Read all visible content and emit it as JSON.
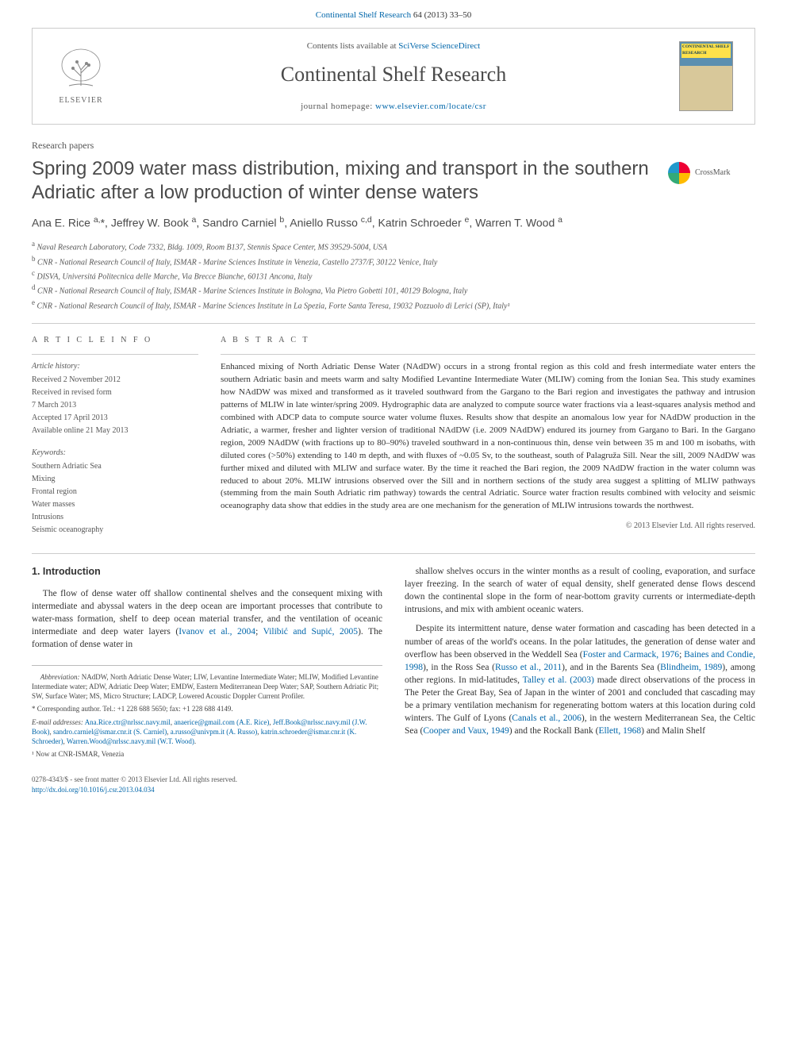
{
  "top_citation": {
    "journal_link": "Continental Shelf Research",
    "citation_text": " 64 (2013) 33–50"
  },
  "header": {
    "contents_prefix": "Contents lists available at ",
    "contents_link": "SciVerse ScienceDirect",
    "journal_name": "Continental Shelf Research",
    "homepage_prefix": "journal homepage: ",
    "homepage_link": "www.elsevier.com/locate/csr",
    "publisher_word": "ELSEVIER",
    "cover_label": "CONTINENTAL SHELF RESEARCH"
  },
  "article": {
    "section_label": "Research papers",
    "title": "Spring 2009 water mass distribution, mixing and transport in the southern Adriatic after a low production of winter dense waters",
    "crossmark": "CrossMark",
    "authors_html": "Ana E. Rice <sup>a,</sup>*, Jeffrey W. Book <sup>a</sup>, Sandro Carniel <sup>b</sup>, Aniello Russo <sup>c,d</sup>, Katrin Schroeder <sup>e</sup>, Warren T. Wood <sup>a</sup>",
    "affiliations": [
      "a Naval Research Laboratory, Code 7332, Bldg. 1009, Room B137, Stennis Space Center, MS 39529-5004, USA",
      "b CNR - National Research Council of Italy, ISMAR - Marine Sciences Institute in Venezia, Castello 2737/F, 30122 Venice, Italy",
      "c DISVA, Universitá Politecnica delle Marche, Via Brecce Bianche, 60131 Ancona, Italy",
      "d CNR - National Research Council of Italy, ISMAR - Marine Sciences Institute in Bologna, Via Pietro Gobetti 101, 40129 Bologna, Italy",
      "e CNR - National Research Council of Italy, ISMAR - Marine Sciences Institute in La Spezia, Forte Santa Teresa, 19032 Pozzuolo di Lerici (SP), Italy¹"
    ]
  },
  "article_info": {
    "heading": "A R T I C L E   I N F O",
    "history_head": "Article history:",
    "history": [
      "Received 2 November 2012",
      "Received in revised form",
      "7 March 2013",
      "Accepted 17 April 2013",
      "Available online 21 May 2013"
    ],
    "keywords_head": "Keywords:",
    "keywords": [
      "Southern Adriatic Sea",
      "Mixing",
      "Frontal region",
      "Water masses",
      "Intrusions",
      "Seismic oceanography"
    ]
  },
  "abstract": {
    "heading": "A B S T R A C T",
    "text": "Enhanced mixing of North Adriatic Dense Water (NAdDW) occurs in a strong frontal region as this cold and fresh intermediate water enters the southern Adriatic basin and meets warm and salty Modified Levantine Intermediate Water (MLIW) coming from the Ionian Sea. This study examines how NAdDW was mixed and transformed as it traveled southward from the Gargano to the Bari region and investigates the pathway and intrusion patterns of MLIW in late winter/spring 2009. Hydrographic data are analyzed to compute source water fractions via a least-squares analysis method and combined with ADCP data to compute source water volume fluxes. Results show that despite an anomalous low year for NAdDW production in the Adriatic, a warmer, fresher and lighter version of traditional NAdDW (i.e. 2009 NAdDW) endured its journey from Gargano to Bari. In the Gargano region, 2009 NAdDW (with fractions up to 80–90%) traveled southward in a non-continuous thin, dense vein between 35 m and 100 m isobaths, with diluted cores (>50%) extending to 140 m depth, and with fluxes of ~0.05 Sv, to the southeast, south of Palagruža Sill. Near the sill, 2009 NAdDW was further mixed and diluted with MLIW and surface water. By the time it reached the Bari region, the 2009 NAdDW fraction in the water column was reduced to about 20%. MLIW intrusions observed over the Sill and in northern sections of the study area suggest a splitting of MLIW pathways (stemming from the main South Adriatic rim pathway) towards the central Adriatic. Source water fraction results combined with velocity and seismic oceanography data show that eddies in the study area are one mechanism for the generation of MLIW intrusions towards the northwest.",
    "copyright": "© 2013 Elsevier Ltd. All rights reserved."
  },
  "body": {
    "intro_head": "1. Introduction",
    "p1": "The flow of dense water off shallow continental shelves and the consequent mixing with intermediate and abyssal waters in the deep ocean are important processes that contribute to water-mass formation, shelf to deep ocean material transfer, and the ventilation of oceanic intermediate and deep water layers (",
    "p1_link1": "Ivanov et al., 2004",
    "p1_mid": "; ",
    "p1_link2": "Vilibić and Supić, 2005",
    "p1_end": "). The formation of dense water in ",
    "p2": "shallow shelves occurs in the winter months as a result of cooling, evaporation, and surface layer freezing. In the search of water of equal density, shelf generated dense flows descend down the continental slope in the form of near-bottom gravity currents or intermediate-depth intrusions, and mix with ambient oceanic waters.",
    "p3_a": "Despite its intermittent nature, dense water formation and cascading has been detected in a number of areas of the world's oceans. In the polar latitudes, the generation of dense water and overflow has been observed in the Weddell Sea (",
    "p3_l1": "Foster and Carmack, 1976",
    "p3_b": "; ",
    "p3_l2": "Baines and Condie, 1998",
    "p3_c": "), in the Ross Sea (",
    "p3_l3": "Russo et al., 2011",
    "p3_d": "), and in the Barents Sea (",
    "p3_l4": "Blindheim, 1989",
    "p3_e": "), among other regions. In mid-latitudes, ",
    "p3_l5": "Talley et al. (2003)",
    "p3_f": " made direct observations of the process in The Peter the Great Bay, Sea of Japan in the winter of 2001 and concluded that cascading may be a primary ventilation mechanism for regenerating bottom waters at this location during cold winters. The Gulf of Lyons (",
    "p3_l6": "Canals et al., 2006",
    "p3_g": "), in the western Mediterranean Sea, the Celtic Sea (",
    "p3_l7": "Cooper and Vaux, 1949",
    "p3_h": ") and the Rockall Bank (",
    "p3_l8": "Ellett, 1968",
    "p3_i": ") and Malin Shelf"
  },
  "footnotes": {
    "abbrev_head": "Abbreviation:",
    "abbrev": " NAdDW, North Adriatic Dense Water; LIW, Levantine Intermediate Water; MLIW, Modified Levantine Intermediate water; ADW, Adriatic Deep Water; EMDW, Eastern Mediterranean Deep Water; SAP, Southern Adriatic Pit; SW, Surface Water; MS, Micro Structure; LADCP, Lowered Acoustic Doppler Current Profiler.",
    "corr": "* Corresponding author. Tel.: +1 228 688 5650; fax: +1 228 688 4149.",
    "emails_head": "E-mail addresses:",
    "emails": [
      {
        "addr": "Ana.Rice.ctr@nrlssc.navy.mil",
        "sep": ", "
      },
      {
        "addr": "anaerice@gmail.com (A.E. Rice)",
        "sep": ", "
      },
      {
        "addr": "Jeff.Book@nrlssc.navy.mil (J.W. Book)",
        "sep": ", "
      },
      {
        "addr": "sandro.carniel@ismar.cnr.it (S. Carniel)",
        "sep": ", "
      },
      {
        "addr": "a.russo@univpm.it (A. Russo)",
        "sep": ", "
      },
      {
        "addr": "katrin.schroeder@ismar.cnr.it (K. Schroeder)",
        "sep": ", "
      },
      {
        "addr": "Warren.Wood@nrlssc.navy.mil (W.T. Wood)",
        "sep": "."
      }
    ],
    "note1": "¹ Now at CNR-ISMAR, Venezia"
  },
  "bottom": {
    "line1": "0278-4343/$ - see front matter © 2013 Elsevier Ltd. All rights reserved.",
    "doi_link": "http://dx.doi.org/10.1016/j.csr.2013.04.034"
  },
  "colors": {
    "link": "#0066aa",
    "heading": "#4a4a4a",
    "body": "#333333",
    "muted": "#555555",
    "rule": "#cccccc"
  }
}
